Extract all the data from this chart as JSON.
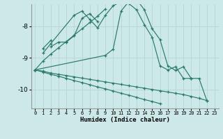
{
  "xlabel": "Humidex (Indice chaleur)",
  "background_color": "#cce8e8",
  "grid_color": "#b8d8d8",
  "line_color": "#2a7a6a",
  "ylim": [
    -10.6,
    -7.3
  ],
  "xlim": [
    -0.5,
    23.5
  ],
  "yticks": [
    -10,
    -9,
    -8
  ],
  "x_ticks": [
    0,
    1,
    2,
    3,
    4,
    5,
    6,
    7,
    8,
    9,
    10,
    11,
    12,
    13,
    14,
    15,
    16,
    17,
    18,
    19,
    20,
    21,
    22,
    23
  ],
  "series": [
    [
      null,
      null,
      -8.65,
      -8.5,
      -8.5,
      -8.3,
      -7.75,
      -7.6,
      -7.85,
      null,
      null,
      null,
      null,
      null,
      null,
      null,
      null,
      null,
      null,
      null,
      null,
      null,
      null,
      null
    ],
    [
      null,
      -8.85,
      -8.55,
      null,
      null,
      -7.65,
      -7.52,
      -7.78,
      -8.05,
      -7.65,
      -7.35,
      -7.22,
      -7.28,
      -7.48,
      -7.95,
      -8.35,
      -9.25,
      -9.38,
      -9.28,
      -9.65,
      -9.65,
      null,
      null,
      null
    ],
    [
      -9.38,
      null,
      null,
      null,
      null,
      null,
      null,
      null,
      null,
      -8.92,
      -8.72,
      -7.52,
      -7.22,
      -7.15,
      -7.48,
      -8.08,
      -8.42,
      -9.25,
      -9.4,
      -9.28,
      -9.65,
      -9.65,
      -10.35,
      null
    ],
    [
      null,
      -8.7,
      -8.45,
      null,
      null,
      null,
      null,
      null,
      null,
      null,
      null,
      null,
      null,
      null,
      null,
      null,
      null,
      null,
      null,
      null,
      null,
      null,
      null,
      null
    ],
    [
      -9.38,
      -9.1,
      -8.88,
      -8.68,
      -8.48,
      -8.28,
      -8.08,
      -7.88,
      -7.68,
      -7.45,
      null,
      null,
      null,
      null,
      null,
      null,
      null,
      null,
      null,
      null,
      null,
      null,
      null,
      null
    ],
    [
      -9.38,
      -9.42,
      -9.48,
      -9.52,
      -9.56,
      -9.6,
      -9.64,
      -9.68,
      -9.72,
      -9.76,
      -9.8,
      -9.84,
      -9.88,
      -9.92,
      -9.96,
      -10.0,
      -10.04,
      -10.08,
      -10.12,
      -10.16,
      -10.22,
      -10.28,
      -10.35,
      null
    ],
    [
      -9.38,
      -9.45,
      -9.52,
      -9.58,
      -9.65,
      -9.72,
      -9.78,
      -9.85,
      -9.92,
      -9.98,
      -10.05,
      -10.12,
      -10.18,
      -10.25,
      -10.32,
      -10.38,
      -10.45,
      null,
      null,
      null,
      null,
      null,
      null,
      null
    ]
  ]
}
